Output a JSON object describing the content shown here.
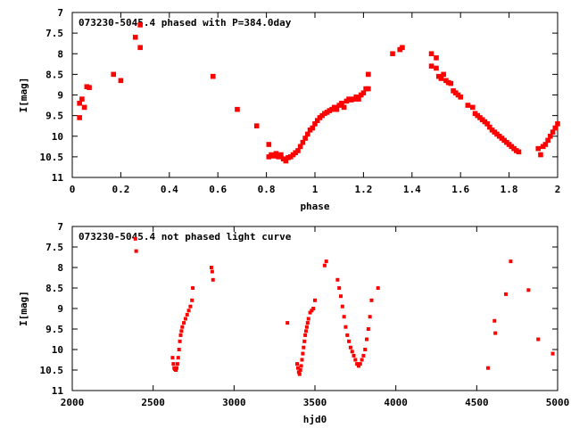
{
  "chart_data": [
    {
      "type": "scatter",
      "title": "073230-5045.4 phased with P=384.0day",
      "xlabel": "phase",
      "ylabel": "I[mag]",
      "xlim": [
        0,
        2
      ],
      "ylim": [
        11,
        7
      ],
      "y_inverted": true,
      "xticks": [
        "0",
        "0.2",
        "0.4",
        "0.6",
        "0.8",
        "1",
        "1.2",
        "1.4",
        "1.6",
        "1.8",
        "2"
      ],
      "yticks": [
        "7",
        "7.5",
        "8",
        "8.5",
        "9",
        "9.5",
        "10",
        "10.5",
        "11"
      ],
      "grid": false,
      "marker_color": "#ff0000",
      "points": [
        [
          0.03,
          9.55
        ],
        [
          0.03,
          9.2
        ],
        [
          0.04,
          9.1
        ],
        [
          0.05,
          9.3
        ],
        [
          0.06,
          8.8
        ],
        [
          0.07,
          8.82
        ],
        [
          0.17,
          8.5
        ],
        [
          0.2,
          8.65
        ],
        [
          0.26,
          7.6
        ],
        [
          0.28,
          7.85
        ],
        [
          0.28,
          7.3
        ],
        [
          0.58,
          8.55
        ],
        [
          0.68,
          9.35
        ],
        [
          0.76,
          9.75
        ],
        [
          0.81,
          10.2
        ],
        [
          0.81,
          10.5
        ],
        [
          0.82,
          10.45
        ],
        [
          0.83,
          10.48
        ],
        [
          0.84,
          10.42
        ],
        [
          0.85,
          10.5
        ],
        [
          0.86,
          10.45
        ],
        [
          0.87,
          10.55
        ],
        [
          0.88,
          10.6
        ],
        [
          0.89,
          10.52
        ],
        [
          0.9,
          10.5
        ],
        [
          0.91,
          10.45
        ],
        [
          0.92,
          10.4
        ],
        [
          0.93,
          10.35
        ],
        [
          0.94,
          10.25
        ],
        [
          0.95,
          10.15
        ],
        [
          0.96,
          10.05
        ],
        [
          0.97,
          9.95
        ],
        [
          0.98,
          9.85
        ],
        [
          0.99,
          9.8
        ],
        [
          1.0,
          9.7
        ],
        [
          1.01,
          9.62
        ],
        [
          1.02,
          9.55
        ],
        [
          1.03,
          9.5
        ],
        [
          1.04,
          9.45
        ],
        [
          1.05,
          9.42
        ],
        [
          1.06,
          9.38
        ],
        [
          1.07,
          9.35
        ],
        [
          1.08,
          9.3
        ],
        [
          1.09,
          9.35
        ],
        [
          1.1,
          9.25
        ],
        [
          1.11,
          9.2
        ],
        [
          1.12,
          9.3
        ],
        [
          1.13,
          9.15
        ],
        [
          1.14,
          9.1
        ],
        [
          1.15,
          9.12
        ],
        [
          1.16,
          9.1
        ],
        [
          1.17,
          9.05
        ],
        [
          1.18,
          9.1
        ],
        [
          1.19,
          9.0
        ],
        [
          1.2,
          8.95
        ],
        [
          1.21,
          8.85
        ],
        [
          1.22,
          8.85
        ],
        [
          1.22,
          8.5
        ],
        [
          1.32,
          8.0
        ],
        [
          1.35,
          7.9
        ],
        [
          1.36,
          7.85
        ],
        [
          1.48,
          8.0
        ],
        [
          1.48,
          8.3
        ],
        [
          1.5,
          8.1
        ],
        [
          1.5,
          8.35
        ],
        [
          1.51,
          8.55
        ],
        [
          1.52,
          8.6
        ],
        [
          1.53,
          8.5
        ],
        [
          1.54,
          8.65
        ],
        [
          1.55,
          8.7
        ],
        [
          1.56,
          8.72
        ],
        [
          1.57,
          8.9
        ],
        [
          1.58,
          8.95
        ],
        [
          1.59,
          9.0
        ],
        [
          1.6,
          9.05
        ],
        [
          1.63,
          9.25
        ],
        [
          1.65,
          9.3
        ],
        [
          1.66,
          9.45
        ],
        [
          1.67,
          9.5
        ],
        [
          1.68,
          9.55
        ],
        [
          1.69,
          9.6
        ],
        [
          1.7,
          9.65
        ],
        [
          1.71,
          9.7
        ],
        [
          1.72,
          9.78
        ],
        [
          1.73,
          9.85
        ],
        [
          1.74,
          9.9
        ],
        [
          1.75,
          9.95
        ],
        [
          1.76,
          10.0
        ],
        [
          1.77,
          10.05
        ],
        [
          1.78,
          10.1
        ],
        [
          1.79,
          10.15
        ],
        [
          1.8,
          10.2
        ],
        [
          1.81,
          10.25
        ],
        [
          1.82,
          10.3
        ],
        [
          1.83,
          10.35
        ],
        [
          1.84,
          10.38
        ],
        [
          1.92,
          10.3
        ],
        [
          1.93,
          10.45
        ],
        [
          1.94,
          10.25
        ],
        [
          1.95,
          10.2
        ],
        [
          1.96,
          10.1
        ],
        [
          1.97,
          10.0
        ],
        [
          1.98,
          9.9
        ],
        [
          1.99,
          9.8
        ],
        [
          2.0,
          9.7
        ]
      ]
    },
    {
      "type": "scatter",
      "title": "073230-5045.4 not phased light curve",
      "xlabel": "hjd0",
      "ylabel": "I[mag]",
      "xlim": [
        2000,
        5000
      ],
      "ylim": [
        11,
        7
      ],
      "y_inverted": true,
      "xticks": [
        "2000",
        "2500",
        "3000",
        "3500",
        "4000",
        "4500",
        "5000"
      ],
      "yticks": [
        "7",
        "7.5",
        "8",
        "8.5",
        "9",
        "9.5",
        "10",
        "10.5",
        "11"
      ],
      "grid": false,
      "marker_color": "#ff0000",
      "points": [
        [
          2390,
          7.3
        ],
        [
          2395,
          7.6
        ],
        [
          2620,
          10.2
        ],
        [
          2625,
          10.35
        ],
        [
          2630,
          10.45
        ],
        [
          2635,
          10.48
        ],
        [
          2640,
          10.5
        ],
        [
          2645,
          10.45
        ],
        [
          2650,
          10.35
        ],
        [
          2655,
          10.2
        ],
        [
          2660,
          10.0
        ],
        [
          2665,
          9.8
        ],
        [
          2670,
          9.65
        ],
        [
          2675,
          9.55
        ],
        [
          2680,
          9.45
        ],
        [
          2690,
          9.35
        ],
        [
          2700,
          9.25
        ],
        [
          2710,
          9.15
        ],
        [
          2720,
          9.05
        ],
        [
          2730,
          8.95
        ],
        [
          2740,
          8.8
        ],
        [
          2745,
          8.5
        ],
        [
          2860,
          8.0
        ],
        [
          2865,
          8.1
        ],
        [
          2870,
          8.3
        ],
        [
          3330,
          9.35
        ],
        [
          3390,
          10.35
        ],
        [
          3395,
          10.45
        ],
        [
          3400,
          10.55
        ],
        [
          3405,
          10.6
        ],
        [
          3410,
          10.5
        ],
        [
          3415,
          10.4
        ],
        [
          3420,
          10.25
        ],
        [
          3425,
          10.1
        ],
        [
          3430,
          9.95
        ],
        [
          3435,
          9.8
        ],
        [
          3440,
          9.65
        ],
        [
          3445,
          9.55
        ],
        [
          3450,
          9.45
        ],
        [
          3455,
          9.35
        ],
        [
          3460,
          9.25
        ],
        [
          3470,
          9.1
        ],
        [
          3480,
          9.05
        ],
        [
          3490,
          9.0
        ],
        [
          3500,
          8.8
        ],
        [
          3560,
          7.95
        ],
        [
          3570,
          7.85
        ],
        [
          3640,
          8.3
        ],
        [
          3650,
          8.5
        ],
        [
          3660,
          8.7
        ],
        [
          3670,
          8.95
        ],
        [
          3680,
          9.2
        ],
        [
          3690,
          9.45
        ],
        [
          3700,
          9.65
        ],
        [
          3710,
          9.8
        ],
        [
          3720,
          9.95
        ],
        [
          3730,
          10.05
        ],
        [
          3740,
          10.15
        ],
        [
          3750,
          10.25
        ],
        [
          3760,
          10.35
        ],
        [
          3770,
          10.4
        ],
        [
          3780,
          10.35
        ],
        [
          3790,
          10.25
        ],
        [
          3800,
          10.15
        ],
        [
          3810,
          10.0
        ],
        [
          3820,
          9.75
        ],
        [
          3830,
          9.5
        ],
        [
          3840,
          9.2
        ],
        [
          3850,
          8.8
        ],
        [
          3890,
          8.5
        ],
        [
          4570,
          10.45
        ],
        [
          4610,
          9.3
        ],
        [
          4615,
          9.6
        ],
        [
          4680,
          8.65
        ],
        [
          4710,
          7.85
        ],
        [
          4820,
          8.55
        ],
        [
          4880,
          9.75
        ],
        [
          4970,
          10.1
        ]
      ]
    }
  ]
}
